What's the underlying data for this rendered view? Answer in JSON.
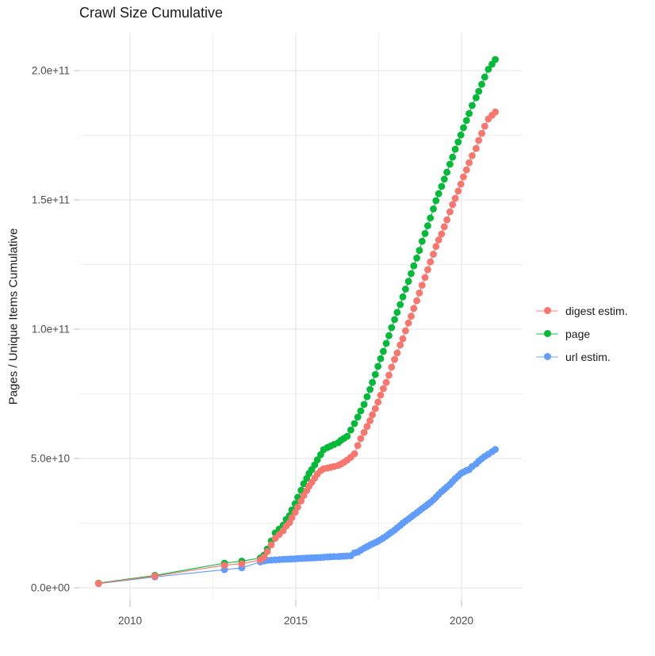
{
  "title": "Crawl Size Cumulative",
  "colors": {
    "background": "#FFFFFF",
    "grid_major": "#E3E3E3",
    "grid_minor": "#F1F1F1",
    "axis_tick": "#D0D0D0",
    "tick_label": "#4D4D4D",
    "text": "#1A1A1A"
  },
  "chart_data": {
    "type": "line",
    "title": "Crawl Size Cumulative",
    "xlabel": "",
    "ylabel": "Pages / Unique Items Cumulative",
    "unit_note": "y values are ×1e9 items (1e11 = 100 on this scale ×1e9); x is decimal year of each crawl",
    "grid": "white background, light gray major+minor gridlines, no panel border",
    "legend_position": "right-center, no box, point-on-line keys",
    "marker": "filled circle on thin line, same color per series",
    "xlim": [
      2008.45,
      2021.65
    ],
    "ylim": [
      -5,
      214
    ],
    "x_ticks": [
      {
        "value": 2010,
        "label": "2010"
      },
      {
        "value": 2015,
        "label": "2015"
      },
      {
        "value": 2020,
        "label": "2020"
      }
    ],
    "x_minor": [
      2012.5,
      2017.5
    ],
    "y_ticks": [
      {
        "value": 0,
        "label": "0.0e+00"
      },
      {
        "value": 50,
        "label": "5.0e+10"
      },
      {
        "value": 100,
        "label": "1.0e+11"
      },
      {
        "value": 150,
        "label": "1.5e+11"
      },
      {
        "value": 200,
        "label": "2.0e+11"
      }
    ],
    "y_minor": [
      25,
      75,
      125,
      175
    ],
    "x": [
      2009.05,
      2010.75,
      2012.85,
      2013.37,
      2013.93,
      2014.04,
      2014.14,
      2014.26,
      2014.38,
      2014.5,
      2014.62,
      2014.71,
      2014.81,
      2014.88,
      2014.98,
      2015.06,
      2015.16,
      2015.24,
      2015.33,
      2015.4,
      2015.48,
      2015.57,
      2015.65,
      2015.75,
      2015.84,
      2015.95,
      2016.05,
      2016.15,
      2016.28,
      2016.36,
      2016.45,
      2016.55,
      2016.66,
      2016.77,
      2016.87,
      2016.96,
      2017.06,
      2017.15,
      2017.24,
      2017.31,
      2017.4,
      2017.48,
      2017.56,
      2017.64,
      2017.73,
      2017.81,
      2017.89,
      2017.98,
      2018.06,
      2018.15,
      2018.23,
      2018.31,
      2018.4,
      2018.48,
      2018.56,
      2018.65,
      2018.73,
      2018.81,
      2018.9,
      2018.98,
      2019.06,
      2019.15,
      2019.23,
      2019.31,
      2019.4,
      2019.48,
      2019.56,
      2019.65,
      2019.73,
      2019.81,
      2019.9,
      2019.98,
      2020.06,
      2020.15,
      2020.23,
      2020.32,
      2020.44,
      2020.52,
      2020.61,
      2020.7,
      2020.81,
      2020.92,
      2021.02
    ],
    "series": [
      {
        "name": "digest estim.",
        "color": "#F8766D",
        "values": [
          1.7,
          4.5,
          8.7,
          9.3,
          10.8,
          11.8,
          14.0,
          16.6,
          19.1,
          20.6,
          22.1,
          23.9,
          25.2,
          27.1,
          29.2,
          31.2,
          33.6,
          35.7,
          37.6,
          39.3,
          40.8,
          42.4,
          44.0,
          45.3,
          46.0,
          46.3,
          46.6,
          46.9,
          47.3,
          47.8,
          48.5,
          49.4,
          50.5,
          51.8,
          55.0,
          57.7,
          60.1,
          62.4,
          64.6,
          66.9,
          69.3,
          71.8,
          74.5,
          77.0,
          79.4,
          82.2,
          85.3,
          88.3,
          90.8,
          93.9,
          96.3,
          99.4,
          102.4,
          105.0,
          108.0,
          111.0,
          114.0,
          117.0,
          120.0,
          123.0,
          126.0,
          129.0,
          132.0,
          134.5,
          136.8,
          139.6,
          142.3,
          145.4,
          148.2,
          150.6,
          153.4,
          156.1,
          158.9,
          161.6,
          164.4,
          167.1,
          169.9,
          173.0,
          175.7,
          178.5,
          181.3,
          182.7,
          184.0
        ]
      },
      {
        "name": "page",
        "color": "#00BA38",
        "values": [
          1.8,
          4.8,
          9.5,
          10.3,
          11.5,
          12.6,
          15.0,
          18.1,
          21.2,
          22.7,
          24.2,
          26.4,
          27.9,
          30.1,
          32.5,
          35.0,
          37.7,
          40.2,
          42.3,
          44.2,
          45.7,
          47.5,
          49.5,
          51.5,
          53.4,
          54.2,
          54.8,
          55.4,
          56.1,
          57.0,
          57.8,
          58.6,
          61.0,
          63.5,
          66.0,
          68.4,
          70.9,
          73.9,
          76.7,
          79.4,
          82.5,
          85.6,
          88.6,
          91.4,
          94.5,
          97.5,
          100.6,
          103.7,
          106.5,
          109.5,
          112.5,
          115.5,
          118.5,
          121.5,
          124.5,
          127.5,
          130.5,
          134.0,
          137.0,
          140.0,
          143.0,
          146.5,
          149.7,
          152.4,
          155.2,
          158.0,
          160.7,
          163.8,
          166.5,
          169.6,
          172.4,
          175.1,
          177.9,
          180.7,
          183.4,
          186.5,
          189.5,
          192.0,
          194.7,
          197.5,
          200.5,
          202.5,
          204.3
        ]
      },
      {
        "name": "url estim.",
        "color": "#619CFF",
        "values": [
          1.6,
          4.2,
          7.0,
          7.7,
          10.0,
          10.4,
          10.6,
          10.7,
          10.8,
          10.9,
          11.0,
          11.05,
          11.1,
          11.15,
          11.2,
          11.3,
          11.35,
          11.4,
          11.45,
          11.5,
          11.55,
          11.6,
          11.65,
          11.7,
          11.8,
          11.9,
          12.0,
          12.05,
          12.1,
          12.15,
          12.2,
          12.3,
          12.4,
          13.5,
          13.8,
          14.5,
          15.3,
          15.9,
          16.5,
          17.0,
          17.5,
          18.0,
          18.6,
          19.3,
          20.0,
          20.8,
          21.5,
          22.3,
          23.2,
          24.1,
          25.0,
          25.8,
          26.6,
          27.4,
          28.2,
          29.0,
          29.8,
          30.6,
          31.4,
          32.2,
          33.0,
          34.0,
          35.0,
          36.1,
          37.2,
          38.1,
          39.0,
          40.0,
          41.1,
          42.2,
          43.2,
          44.2,
          44.8,
          45.3,
          45.7,
          46.9,
          47.9,
          49.0,
          49.9,
          50.8,
          51.7,
          52.6,
          53.5
        ]
      }
    ],
    "draw_order": [
      "url estim.",
      "page",
      "digest estim."
    ]
  }
}
